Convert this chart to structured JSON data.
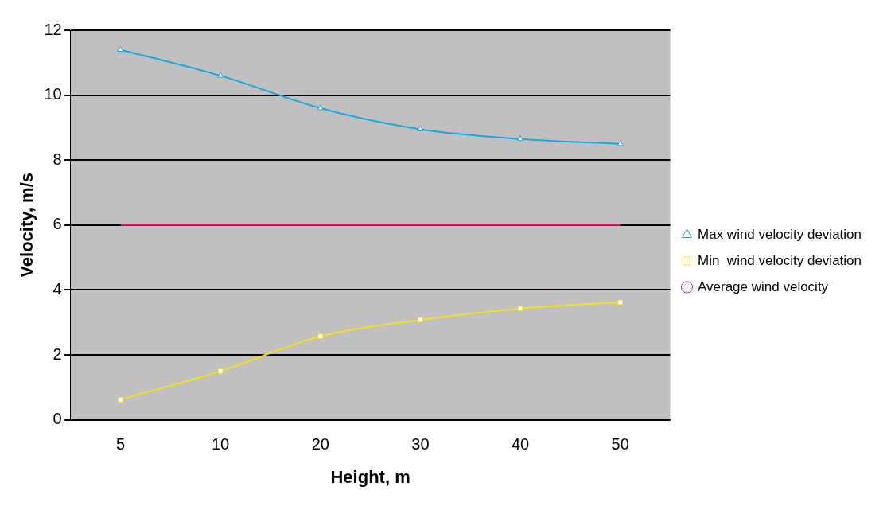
{
  "chart_data": {
    "type": "line",
    "xlabel": "Height, m",
    "ylabel": "Velocity, m/s",
    "categories": [
      "5",
      "10",
      "20",
      "30",
      "40",
      "50"
    ],
    "ylim": [
      0,
      12
    ],
    "yticks": [
      0,
      2,
      4,
      6,
      8,
      10,
      12
    ],
    "grid": "y",
    "legend": "right",
    "line_style": "solid",
    "series": [
      {
        "name": "Max wind velocity deviation",
        "color": "#1aa7e0",
        "marker": "triangle",
        "values": [
          11.4,
          10.6,
          9.6,
          8.95,
          8.65,
          8.5
        ]
      },
      {
        "name": "Min  wind velocity deviation",
        "color": "#f0e020",
        "marker": "square",
        "values": [
          0.62,
          1.5,
          2.57,
          3.08,
          3.43,
          3.62
        ]
      },
      {
        "name": "Average wind velocity",
        "color": "#e0177a",
        "marker": "none",
        "values": [
          6,
          6,
          6,
          6,
          6,
          6
        ]
      }
    ]
  }
}
